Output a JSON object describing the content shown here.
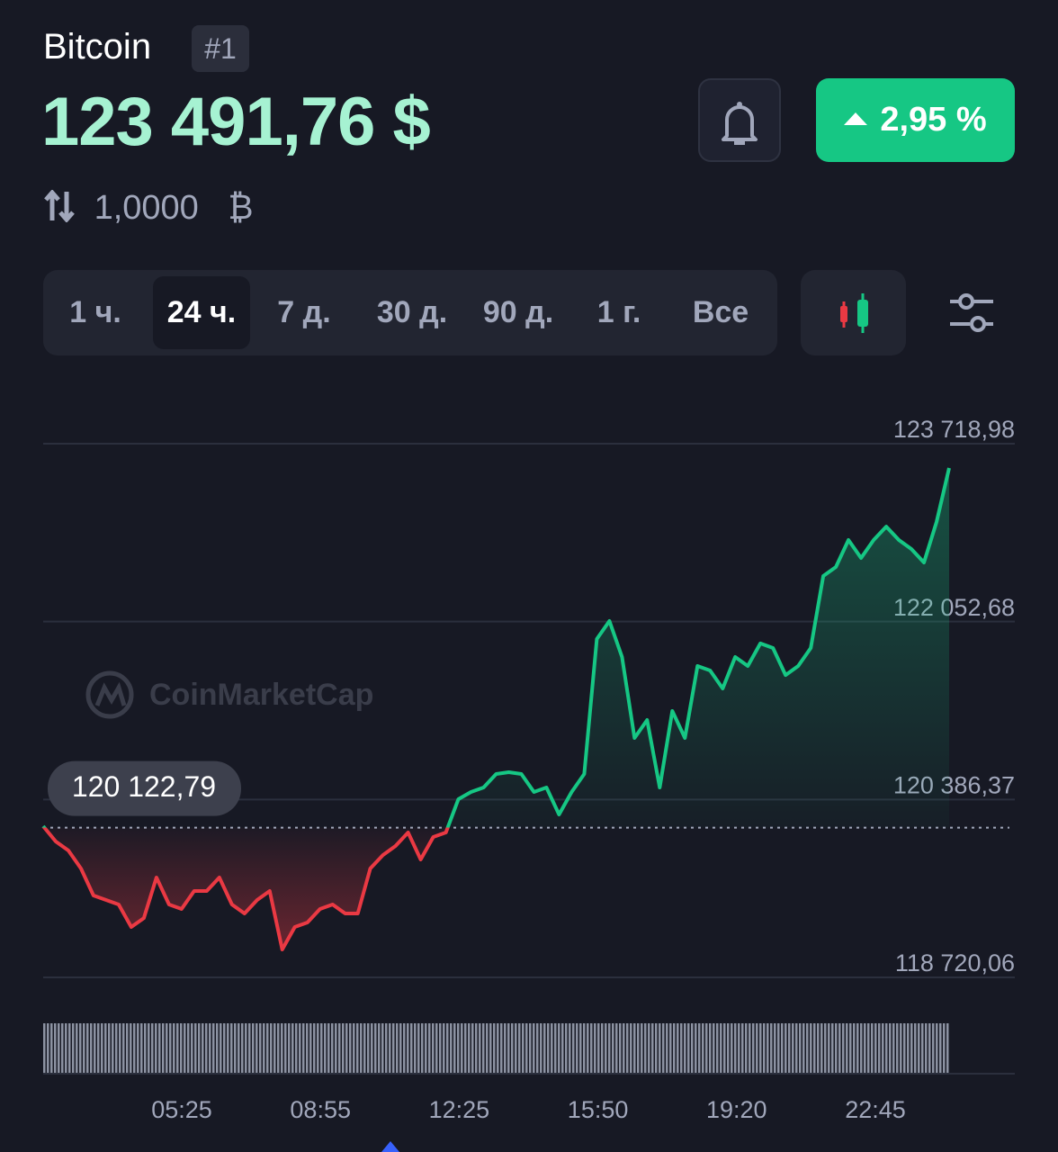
{
  "header": {
    "name": "Bitcoin",
    "rank": "#1",
    "price": "123 491,76 $",
    "change": "2,95 %",
    "amount": "1,0000",
    "unit": "₿"
  },
  "tabs": [
    "1 ч.",
    "24 ч.",
    "7 д.",
    "30 д.",
    "90 д.",
    "1 г.",
    "Все"
  ],
  "active_tab": 1,
  "watermark": "CoinMarketCap",
  "chart_data": {
    "type": "line",
    "values": [
      120136,
      119993,
      119909,
      119740,
      119487,
      119445,
      119403,
      119192,
      119276,
      119656,
      119403,
      119361,
      119529,
      119529,
      119656,
      119403,
      119319,
      119445,
      119529,
      118981,
      119192,
      119234,
      119361,
      119403,
      119319,
      119319,
      119740,
      119866,
      119951,
      120077,
      119824,
      120035,
      120077,
      120389,
      120457,
      120499,
      120625,
      120642,
      120625,
      120457,
      120499,
      120246,
      120457,
      120625,
      121890,
      122058,
      121721,
      120962,
      121131,
      120499,
      121215,
      120962,
      121637,
      121595,
      121426,
      121721,
      121637,
      121848,
      121805,
      121552,
      121637,
      121805,
      122480,
      122564,
      122817,
      122648,
      122817,
      122943,
      122817,
      122733,
      122606,
      122986,
      123491
    ],
    "color_up": "#16c784",
    "color_down": "#ea3943",
    "ylim": [
      118720.06,
      123718.98
    ],
    "yticks": [
      {
        "value": 118720.06,
        "label": "118 720,06"
      },
      {
        "value": 120386.37,
        "label": "120 386,37"
      },
      {
        "value": 122052.68,
        "label": "122 052,68"
      },
      {
        "value": 123718.98,
        "label": "123 718,98"
      }
    ],
    "baseline": {
      "value": 120122.79,
      "label": "120 122,79"
    },
    "xticks": [
      "05:25",
      "08:55",
      "12:25",
      "15:50",
      "19:20",
      "22:45"
    ],
    "grid": true
  }
}
